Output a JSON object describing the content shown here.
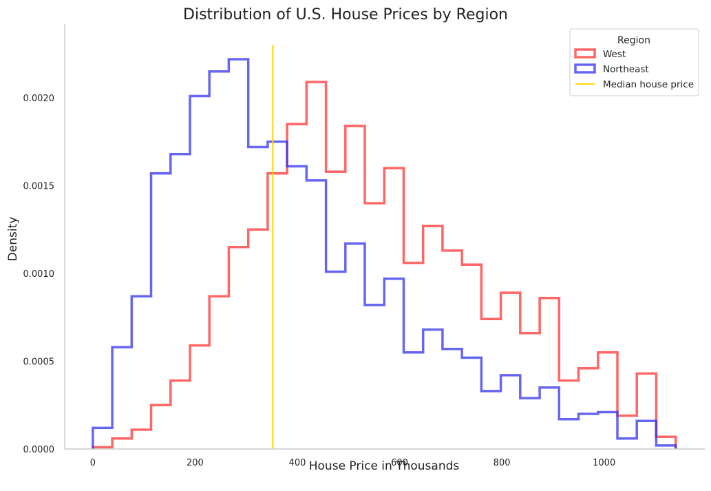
{
  "chart_data": {
    "type": "histogram",
    "title": "Distribution of U.S. House Prices by Region",
    "xlabel": "House Price in Thousands",
    "ylabel": "Density",
    "xlim": [
      -55,
      1197
    ],
    "ylim": [
      0,
      0.00242
    ],
    "x_ticks": [
      0,
      200,
      400,
      600,
      800,
      1000
    ],
    "x_tick_labels": [
      "0",
      "200",
      "400",
      "600",
      "800",
      "1000"
    ],
    "y_ticks": [
      0,
      0.0005,
      0.001,
      0.0015,
      0.002
    ],
    "y_tick_labels": [
      "0.0000",
      "0.0005",
      "0.0010",
      "0.0015",
      "0.0020"
    ],
    "bin_edges": [
      0,
      38,
      76,
      114,
      152,
      190,
      228,
      266,
      304,
      342,
      380,
      418,
      456,
      494,
      532,
      570,
      608,
      646,
      684,
      722,
      760,
      798,
      836,
      874,
      912,
      950,
      988,
      1026,
      1064,
      1102,
      1140
    ],
    "series": [
      {
        "name": "West",
        "color": "#ff3333",
        "values": [
          1e-05,
          6e-05,
          0.00011,
          0.00025,
          0.00039,
          0.00059,
          0.00087,
          0.00115,
          0.00125,
          0.00157,
          0.00185,
          0.00209,
          0.00158,
          0.00184,
          0.0014,
          0.0016,
          0.00106,
          0.00127,
          0.00113,
          0.00105,
          0.00074,
          0.00089,
          0.00066,
          0.00086,
          0.00039,
          0.00046,
          0.00055,
          0.00019,
          0.00043,
          7e-05
        ]
      },
      {
        "name": "Northeast",
        "color": "#3333ee",
        "values": [
          0.00012,
          0.00058,
          0.00087,
          0.00157,
          0.00168,
          0.00201,
          0.00215,
          0.00222,
          0.00172,
          0.00175,
          0.00161,
          0.00153,
          0.00101,
          0.00117,
          0.00082,
          0.00097,
          0.00055,
          0.00068,
          0.00057,
          0.00052,
          0.00033,
          0.00042,
          0.00029,
          0.00035,
          0.00017,
          0.0002,
          0.00021,
          6e-05,
          0.00016,
          2e-05
        ]
      }
    ],
    "median_line": {
      "name": "Median house price",
      "x": 352,
      "color": "#ffd700"
    },
    "legend": {
      "title": "Region",
      "position": "top-right",
      "entries": [
        "West",
        "Northeast",
        "Median house price"
      ]
    },
    "grid": false
  }
}
